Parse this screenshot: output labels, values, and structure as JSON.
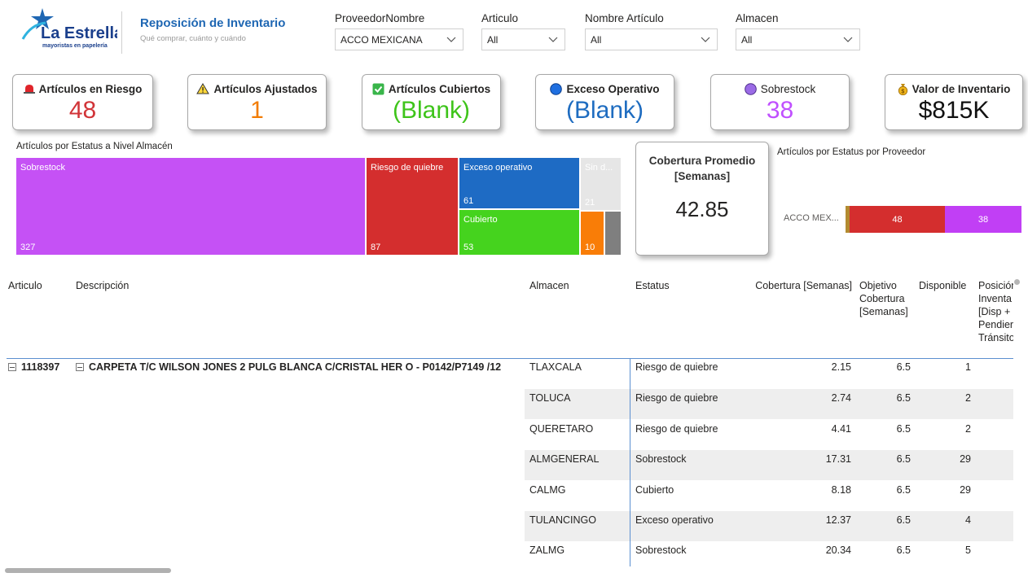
{
  "logo": {
    "brand": "La Estrella",
    "tagline": "mayoristas en papelería"
  },
  "header": {
    "title": "Reposición de Inventario",
    "subtitle": "Qué comprar, cuánto y cuándo"
  },
  "filters": {
    "proveedor": {
      "label": "ProveedorNombre",
      "value": "ACCO MEXICANA"
    },
    "articulo": {
      "label": "Articulo",
      "value": "All"
    },
    "nombre_articulo": {
      "label": "Nombre Artículo",
      "value": "All"
    },
    "almacen": {
      "label": "Almacen",
      "value": "All"
    }
  },
  "kpis": {
    "riesgo": {
      "title": "Artículos en Riesgo",
      "value": "48",
      "icon": "siren-icon",
      "color": "#d13438"
    },
    "ajustados": {
      "title": "Artículos Ajustados",
      "value": "1",
      "icon": "warning-icon",
      "color": "#f27c00"
    },
    "cubiertos": {
      "title": "Artículos Cubiertos",
      "value": "(Blank)",
      "icon": "check-box-icon",
      "color": "#3ec41a"
    },
    "exceso": {
      "title": "Exceso Operativo",
      "value": "(Blank)",
      "icon": "blue-circle-icon",
      "color": "#1e6cc0"
    },
    "sobrestock": {
      "title": "Sobrestock",
      "value": "38",
      "icon": "purple-circle-icon",
      "color": "#c050ff"
    },
    "valor": {
      "title": "Valor de Inventario",
      "value": "$815K",
      "icon": "money-bag-icon",
      "color": "#111111"
    }
  },
  "treemap": {
    "title": "Artículos por Estatus a Nivel Almacén",
    "items": [
      {
        "label": "Sobrestock",
        "value": "327",
        "color": "#c551f5"
      },
      {
        "label": "Riesgo de quiebre",
        "value": "87",
        "color": "#d42e2e"
      },
      {
        "label": "Exceso operativo",
        "value": "61",
        "color": "#1e6bc4"
      },
      {
        "label": "Cubierto",
        "value": "53",
        "color": "#45d31e"
      },
      {
        "label": "Sin d...",
        "value": "21",
        "color": "#e6e6e6"
      },
      {
        "label": "",
        "value": "10",
        "color": "#f97d07"
      },
      {
        "label": "",
        "value": "",
        "color": "#7f7f7f"
      }
    ]
  },
  "coverage": {
    "title": "Cobertura Promedio [Semanas]",
    "value": "42.85"
  },
  "supplier_chart": {
    "title": "Artículos por Estatus por Proveedor",
    "category": "ACCO MEX...",
    "segments": [
      {
        "value": "",
        "color": "#b38b31"
      },
      {
        "value": "48",
        "color": "#d42e2e"
      },
      {
        "value": "38",
        "color": "#c13ff5"
      }
    ]
  },
  "table": {
    "headers": {
      "articulo": "Articulo",
      "descripcion": "Descripción",
      "almacen": "Almacen",
      "estatus": "Estatus",
      "cobertura": "Cobertura [Semanas]",
      "objetivo": [
        "Objetivo",
        "Cobertura",
        "[Semanas]"
      ],
      "disponible": "Disponible",
      "posicion": [
        "Posición",
        "Inventa",
        "[Disp +",
        "Pendier",
        "Tránsito"
      ]
    },
    "group": {
      "articulo": "1118397",
      "descripcion": "CARPETA T/C WILSON JONES 2 PULG BLANCA C/CRISTAL HER O - P0142/P7149 /12"
    },
    "rows": [
      {
        "almacen": "TLAXCALA",
        "estatus": "Riesgo de quiebre",
        "cobertura": "2.15",
        "objetivo": "6.5",
        "disponible": "1"
      },
      {
        "almacen": "TOLUCA",
        "estatus": "Riesgo de quiebre",
        "cobertura": "2.74",
        "objetivo": "6.5",
        "disponible": "2"
      },
      {
        "almacen": "QUERETARO",
        "estatus": "Riesgo de quiebre",
        "cobertura": "4.41",
        "objetivo": "6.5",
        "disponible": "2"
      },
      {
        "almacen": "ALMGENERAL",
        "estatus": "Sobrestock",
        "cobertura": "17.31",
        "objetivo": "6.5",
        "disponible": "29"
      },
      {
        "almacen": "CALMG",
        "estatus": "Cubierto",
        "cobertura": "8.18",
        "objetivo": "6.5",
        "disponible": "29"
      },
      {
        "almacen": "TULANCINGO",
        "estatus": "Exceso operativo",
        "cobertura": "12.37",
        "objetivo": "6.5",
        "disponible": "4"
      },
      {
        "almacen": "ZALMG",
        "estatus": "Sobrestock",
        "cobertura": "20.34",
        "objetivo": "6.5",
        "disponible": "5"
      }
    ]
  }
}
